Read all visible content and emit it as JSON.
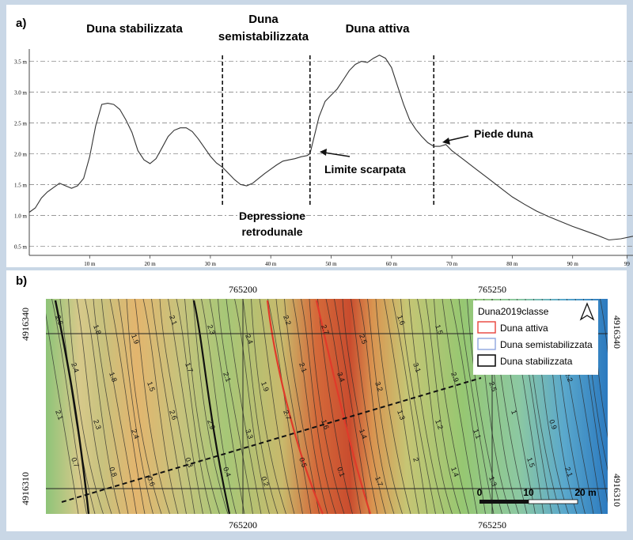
{
  "panel_a": {
    "label": "a)",
    "zones": [
      "Duna stabilizzata",
      "Duna",
      "semistabilizzata",
      "Duna attiva"
    ],
    "annotations": {
      "limite": "Limite scarpata",
      "piede": "Piede duna",
      "depressione": [
        "Depressione",
        "retrodunale"
      ]
    }
  },
  "panel_b": {
    "label": "b)",
    "coords": {
      "e1": "765200",
      "e2": "765250",
      "n1": "4916340",
      "n2": "4916310"
    },
    "legend": {
      "title": "Duna2019classe",
      "items": [
        {
          "label": "Duna attiva",
          "color": "#e8423a"
        },
        {
          "label": "Duna semistabilizzata",
          "color": "#8fa6df"
        },
        {
          "label": "Duna stabilizzata",
          "color": "#111111"
        }
      ]
    },
    "scalebar": {
      "labels": [
        "0",
        "10",
        "20 m"
      ]
    },
    "contour_labels": [
      "2.6",
      "1.8",
      "1.9",
      "2.1",
      "2.3",
      "2.4",
      "2.2",
      "2.7",
      "2.5",
      "1.6",
      "1.5",
      "1.7",
      "1.9",
      "2.5",
      "2.4",
      "1.8",
      "1.5",
      "1.7",
      "2.1",
      "1.9",
      "2.1",
      "3.4",
      "3.2",
      "3.1",
      "2.9",
      "2.5",
      "2.3",
      "2.2",
      "2.1",
      "2.3",
      "2.4",
      "2.6",
      "2.9",
      "3.3",
      "2.7",
      "1.6",
      "1.4",
      "1.3",
      "1.2",
      "1.1",
      "1",
      "0.9",
      "0.7",
      "0.8",
      "0.6",
      "0.3",
      "0.4",
      "0.2",
      "0.5",
      "0.1",
      "1.7",
      "2",
      "1.4",
      "1.3",
      "1.5",
      "2.1"
    ]
  },
  "chart_data": {
    "type": "line",
    "xlabel": "",
    "ylabel": "",
    "xlim": [
      0,
      100
    ],
    "ylim": [
      0.35,
      3.7
    ],
    "x_ticks": [
      10,
      20,
      30,
      40,
      50,
      60,
      70,
      80,
      90,
      99
    ],
    "x_tick_labels": [
      "10 m",
      "20 m",
      "30 m",
      "40 m",
      "50 m",
      "60 m",
      "70 m",
      "80 m",
      "90 m",
      "99"
    ],
    "y_ticks": [
      0.5,
      1.0,
      1.5,
      2.0,
      2.5,
      3.0,
      3.5
    ],
    "y_tick_labels": [
      "0.5 m",
      "1.0 m",
      "1.5 m",
      "2.0 m",
      "2.5 m",
      "3.0 m",
      "3.5 m"
    ],
    "grid": true,
    "dividers_x": [
      32,
      46.5,
      67
    ],
    "series": [
      {
        "x": [
          0,
          1,
          2,
          3,
          4,
          5,
          6,
          7,
          8,
          9,
          10,
          11,
          12,
          13,
          14,
          15,
          16,
          17,
          18,
          19,
          20,
          21,
          22,
          23,
          24,
          25,
          26,
          27,
          28,
          29,
          30,
          31,
          32,
          33,
          34,
          35,
          36,
          37,
          38,
          39,
          40,
          41,
          42,
          43,
          44,
          45,
          46,
          46.5,
          47,
          48,
          49,
          50,
          51,
          52,
          53,
          54,
          55,
          56,
          57,
          58,
          59,
          60,
          61,
          62,
          63,
          64,
          65,
          66,
          67,
          68,
          69,
          70,
          72,
          74,
          76,
          78,
          80,
          82,
          84,
          86,
          88,
          90,
          92,
          94,
          96,
          98,
          100
        ],
        "values": [
          1.05,
          1.12,
          1.28,
          1.38,
          1.45,
          1.52,
          1.48,
          1.44,
          1.48,
          1.6,
          1.95,
          2.45,
          2.8,
          2.82,
          2.8,
          2.72,
          2.55,
          2.35,
          2.05,
          1.9,
          1.84,
          1.92,
          2.1,
          2.28,
          2.38,
          2.42,
          2.42,
          2.36,
          2.24,
          2.1,
          1.96,
          1.85,
          1.78,
          1.68,
          1.58,
          1.5,
          1.48,
          1.52,
          1.6,
          1.68,
          1.75,
          1.82,
          1.88,
          1.9,
          1.92,
          1.95,
          1.97,
          2.0,
          2.2,
          2.6,
          2.85,
          2.95,
          3.05,
          3.2,
          3.35,
          3.45,
          3.5,
          3.48,
          3.55,
          3.6,
          3.55,
          3.4,
          3.1,
          2.8,
          2.55,
          2.4,
          2.28,
          2.18,
          2.12,
          2.12,
          2.15,
          2.05,
          1.9,
          1.75,
          1.6,
          1.45,
          1.3,
          1.18,
          1.07,
          0.98,
          0.9,
          0.82,
          0.75,
          0.68,
          0.6,
          0.62,
          0.66
        ]
      }
    ]
  }
}
